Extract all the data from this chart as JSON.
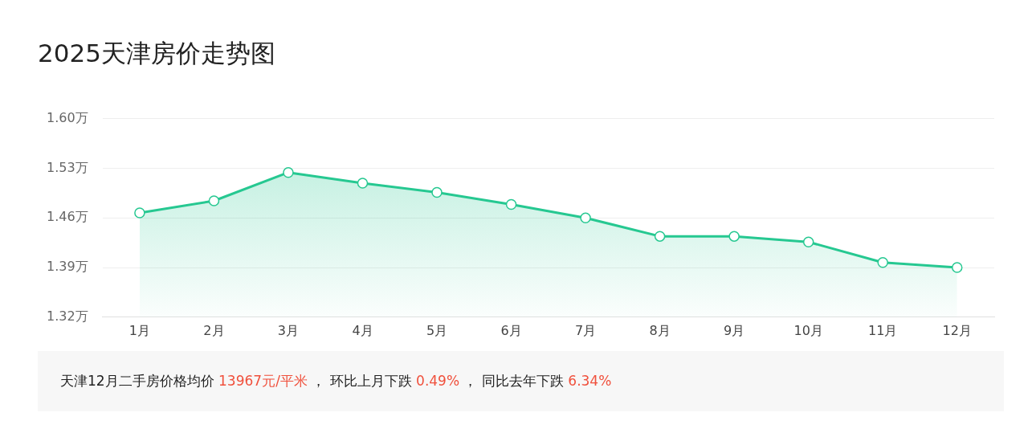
{
  "chart_data": {
    "type": "area",
    "title": "2025天津房价走势图",
    "categories": [
      "1月",
      "2月",
      "3月",
      "4月",
      "5月",
      "6月",
      "7月",
      "8月",
      "9月",
      "10月",
      "11月",
      "12月"
    ],
    "series": [
      {
        "color": "#26c891",
        "values": [
          1.467,
          1.484,
          1.524,
          1.509,
          1.496,
          1.479,
          1.46,
          1.434,
          1.434,
          1.426,
          1.397,
          1.39
        ]
      }
    ],
    "ylim": [
      1.32,
      1.6
    ],
    "yticks": [
      {
        "value": 1.32,
        "label": "1.32万"
      },
      {
        "value": 1.39,
        "label": "1.39万"
      },
      {
        "value": 1.46,
        "label": "1.46万"
      },
      {
        "value": 1.53,
        "label": "1.53万"
      },
      {
        "value": 1.6,
        "label": "1.60万"
      }
    ],
    "grid": "y",
    "legend": false,
    "marker": "circle",
    "line_style": "solid",
    "annotations": [
      "天津12月二手房价格均价 13967元/平米 ， 环比上月下跌 0.49% ， 同比去年下跌 6.34%"
    ]
  }
}
